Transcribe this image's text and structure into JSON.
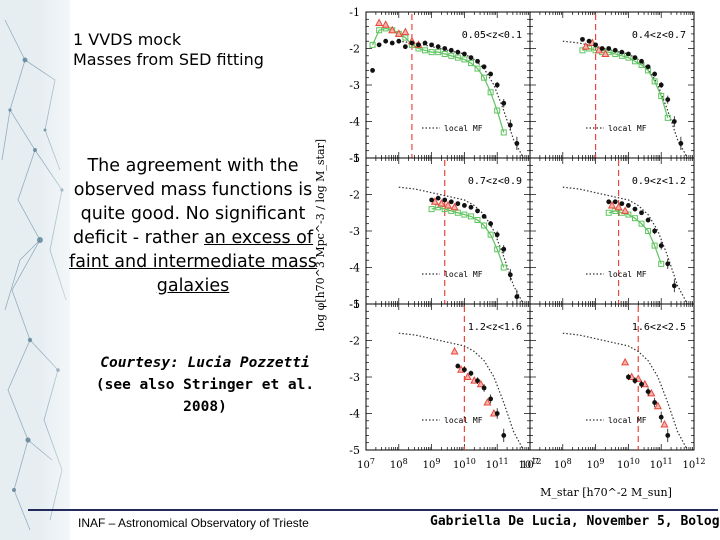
{
  "slide": {
    "title_lines": [
      "1 VVDS mock",
      "Masses from SED fitting"
    ],
    "body_plain": "The agreement with the observed mass functions is quite good. No significant deficit - rather",
    "body_underlined": "an excess of faint and intermediate mass galaxies",
    "courtesy_name": "Courtesy: Lucia Pozzetti",
    "courtesy_ref": "(see also Stringer et al. 2008)",
    "footer_left": "INAF – Astronomical Observatory of Trieste",
    "footer_right": "Gabriella De Lucia, November 5, Bologna"
  },
  "chart_data": {
    "type": "scatter",
    "layout": "3 rows x 2 columns",
    "xlabel": "M_star [h70^-2 M_sun]",
    "ylabel": "log φ[h70^3 Mpc^-3 / log M_star]",
    "x_scale": "log",
    "xlim": [
      10000000,
      1000000000000
    ],
    "x_tick_labels": [
      "10^7",
      "10^8",
      "10^9",
      "10^10",
      "10^11",
      "10^12"
    ],
    "ylim": [
      -5,
      -1
    ],
    "y_tick_labels": [
      "-1",
      "-2",
      "-3",
      "-4",
      "-5"
    ],
    "legend_label": "local MF",
    "colors": {
      "observed": "#111111",
      "model_green": "#5ec45e",
      "model_red": "#e8473a",
      "local_mf": "#333333"
    },
    "panels": [
      {
        "label": "0.05<z<0.1",
        "position": "top-left",
        "red_limit_x": 8.4,
        "observed": {
          "x": [
            7.2,
            7.4,
            7.6,
            7.8,
            8.0,
            8.2,
            8.4,
            8.6,
            8.8,
            9.0,
            9.2,
            9.4,
            9.6,
            9.8,
            10.0,
            10.2,
            10.4,
            10.6,
            10.8,
            11.0,
            11.2,
            11.4,
            11.6
          ],
          "y": [
            -2.6,
            -1.9,
            -1.8,
            -1.85,
            -1.8,
            -1.95,
            -1.85,
            -1.9,
            -1.85,
            -1.9,
            -1.95,
            -2.0,
            -2.05,
            -2.1,
            -2.15,
            -2.25,
            -2.35,
            -2.5,
            -2.7,
            -3.0,
            -3.5,
            -4.1,
            -4.6
          ]
        },
        "model_green": {
          "x": [
            7.2,
            7.4,
            7.6,
            7.8,
            8.0,
            8.2,
            8.4,
            8.6,
            8.8,
            9.0,
            9.2,
            9.4,
            9.6,
            9.8,
            10.0,
            10.2,
            10.4,
            10.6,
            10.8,
            11.0,
            11.2
          ],
          "y": [
            -1.9,
            -1.5,
            -1.45,
            -1.5,
            -1.6,
            -1.7,
            -1.9,
            -2.0,
            -2.05,
            -2.1,
            -2.1,
            -2.15,
            -2.2,
            -2.25,
            -2.3,
            -2.4,
            -2.55,
            -2.8,
            -3.2,
            -3.7,
            -4.3
          ]
        },
        "model_red": {
          "x": [
            7.4,
            7.6,
            7.8,
            8.0,
            8.2,
            8.4,
            8.6
          ],
          "y": [
            -1.3,
            -1.35,
            -1.5,
            -1.6,
            -1.55,
            -1.8,
            -1.9
          ]
        },
        "local_mf": {
          "x": [
            8.0,
            8.5,
            9.0,
            9.5,
            10.0,
            10.3,
            10.6,
            10.9,
            11.2,
            11.5,
            11.8
          ],
          "y": [
            -1.8,
            -1.85,
            -1.95,
            -2.05,
            -2.15,
            -2.3,
            -2.55,
            -3.0,
            -3.7,
            -4.5,
            -5.0
          ]
        }
      },
      {
        "label": "0.4<z<0.7",
        "position": "top-right",
        "red_limit_x": 9.0,
        "observed": {
          "x": [
            8.6,
            8.8,
            9.0,
            9.2,
            9.4,
            9.6,
            9.8,
            10.0,
            10.2,
            10.4,
            10.6,
            10.8,
            11.0,
            11.2,
            11.4,
            11.6
          ],
          "y": [
            -1.75,
            -1.8,
            -1.9,
            -2.0,
            -2.0,
            -2.05,
            -2.1,
            -2.15,
            -2.25,
            -2.35,
            -2.5,
            -2.7,
            -3.0,
            -3.4,
            -4.0,
            -4.6
          ]
        },
        "model_green": {
          "x": [
            8.6,
            8.8,
            9.0,
            9.2,
            9.4,
            9.6,
            9.8,
            10.0,
            10.2,
            10.4,
            10.6,
            10.8,
            11.0,
            11.2
          ],
          "y": [
            -2.05,
            -2.0,
            -2.05,
            -2.1,
            -2.1,
            -2.15,
            -2.2,
            -2.25,
            -2.35,
            -2.45,
            -2.6,
            -2.9,
            -3.3,
            -3.9
          ]
        },
        "model_red": {
          "x": [
            8.7,
            8.9,
            9.1,
            9.3
          ],
          "y": [
            -1.95,
            -1.85,
            -2.05,
            -2.15
          ]
        },
        "local_mf": {
          "x": [
            8.0,
            8.5,
            9.0,
            9.5,
            10.0,
            10.3,
            10.6,
            10.9,
            11.2,
            11.5,
            11.8
          ],
          "y": [
            -1.8,
            -1.85,
            -1.95,
            -2.05,
            -2.15,
            -2.3,
            -2.55,
            -3.0,
            -3.7,
            -4.5,
            -5.0
          ]
        }
      },
      {
        "label": "0.7<z<0.9",
        "position": "middle-left",
        "red_limit_x": 9.4,
        "observed": {
          "x": [
            9.0,
            9.2,
            9.4,
            9.6,
            9.8,
            10.0,
            10.2,
            10.4,
            10.6,
            10.8,
            11.0,
            11.2,
            11.4,
            11.6
          ],
          "y": [
            -2.15,
            -2.1,
            -2.15,
            -2.2,
            -2.25,
            -2.3,
            -2.35,
            -2.45,
            -2.6,
            -2.8,
            -3.1,
            -3.5,
            -4.2,
            -4.8
          ]
        },
        "model_green": {
          "x": [
            9.0,
            9.2,
            9.4,
            9.6,
            9.8,
            10.0,
            10.2,
            10.4,
            10.6,
            10.8,
            11.0,
            11.2
          ],
          "y": [
            -2.4,
            -2.35,
            -2.4,
            -2.45,
            -2.5,
            -2.55,
            -2.6,
            -2.7,
            -2.85,
            -3.1,
            -3.5,
            -4.0
          ]
        },
        "model_red": {
          "x": [
            9.1,
            9.3,
            9.5,
            9.7
          ],
          "y": [
            -2.2,
            -2.25,
            -2.3,
            -2.35
          ]
        },
        "local_mf": {
          "x": [
            8.0,
            8.5,
            9.0,
            9.5,
            10.0,
            10.3,
            10.6,
            10.9,
            11.2,
            11.5,
            11.8
          ],
          "y": [
            -1.8,
            -1.85,
            -1.95,
            -2.05,
            -2.15,
            -2.3,
            -2.55,
            -3.0,
            -3.7,
            -4.5,
            -5.0
          ]
        }
      },
      {
        "label": "0.9<z<1.2",
        "position": "middle-right",
        "red_limit_x": 9.7,
        "observed": {
          "x": [
            9.4,
            9.6,
            9.8,
            10.0,
            10.2,
            10.4,
            10.6,
            10.8,
            11.0,
            11.2,
            11.4
          ],
          "y": [
            -2.2,
            -2.2,
            -2.25,
            -2.3,
            -2.4,
            -2.5,
            -2.7,
            -3.0,
            -3.4,
            -3.9,
            -4.5
          ]
        },
        "model_green": {
          "x": [
            9.4,
            9.6,
            9.8,
            10.0,
            10.2,
            10.4,
            10.6,
            10.8,
            11.0
          ],
          "y": [
            -2.5,
            -2.45,
            -2.5,
            -2.55,
            -2.65,
            -2.8,
            -3.0,
            -3.4,
            -3.9
          ]
        },
        "model_red": {
          "x": [
            9.5,
            9.7,
            9.9
          ],
          "y": [
            -2.3,
            -2.35,
            -2.45
          ]
        },
        "local_mf": {
          "x": [
            8.0,
            8.5,
            9.0,
            9.5,
            10.0,
            10.3,
            10.6,
            10.9,
            11.2,
            11.5,
            11.8
          ],
          "y": [
            -1.8,
            -1.85,
            -1.95,
            -2.05,
            -2.15,
            -2.3,
            -2.55,
            -3.0,
            -3.7,
            -4.5,
            -5.0
          ]
        }
      },
      {
        "label": "1.2<z<1.6",
        "position": "bottom-left",
        "red_limit_x": 10.0,
        "observed": {
          "x": [
            9.8,
            10.0,
            10.2,
            10.4,
            10.6,
            10.8,
            11.0,
            11.2
          ],
          "y": [
            -2.7,
            -2.8,
            -2.9,
            -3.1,
            -3.3,
            -3.6,
            -4.0,
            -4.6
          ]
        },
        "model_green": {
          "x": [],
          "y": []
        },
        "model_red": {
          "x": [
            9.7,
            9.9,
            10.1,
            10.3,
            10.5,
            10.7,
            10.9
          ],
          "y": [
            -2.3,
            -2.8,
            -3.0,
            -3.1,
            -3.2,
            -3.7,
            -4.0
          ]
        },
        "local_mf": {
          "x": [
            8.0,
            8.5,
            9.0,
            9.5,
            10.0,
            10.3,
            10.6,
            10.9,
            11.2,
            11.5,
            11.8
          ],
          "y": [
            -1.8,
            -1.85,
            -1.95,
            -2.05,
            -2.15,
            -2.3,
            -2.55,
            -3.0,
            -3.7,
            -4.5,
            -5.0
          ]
        }
      },
      {
        "label": "1.6<z<2.5",
        "position": "bottom-right",
        "red_limit_x": 10.3,
        "observed": {
          "x": [
            10.0,
            10.2,
            10.4,
            10.6,
            10.8,
            11.0,
            11.2
          ],
          "y": [
            -3.0,
            -3.1,
            -3.2,
            -3.4,
            -3.7,
            -4.1,
            -4.6
          ]
        },
        "model_green": {
          "x": [],
          "y": []
        },
        "model_red": {
          "x": [
            9.9,
            10.1,
            10.3,
            10.5,
            10.7,
            10.9,
            11.1
          ],
          "y": [
            -2.6,
            -3.0,
            -3.05,
            -3.2,
            -3.45,
            -3.8,
            -4.3
          ]
        },
        "local_mf": {
          "x": [
            8.0,
            8.5,
            9.0,
            9.5,
            10.0,
            10.3,
            10.6,
            10.9,
            11.2,
            11.5,
            11.8
          ],
          "y": [
            -1.8,
            -1.85,
            -1.95,
            -2.05,
            -2.15,
            -2.3,
            -2.55,
            -3.0,
            -3.7,
            -4.5,
            -5.0
          ]
        }
      }
    ]
  }
}
